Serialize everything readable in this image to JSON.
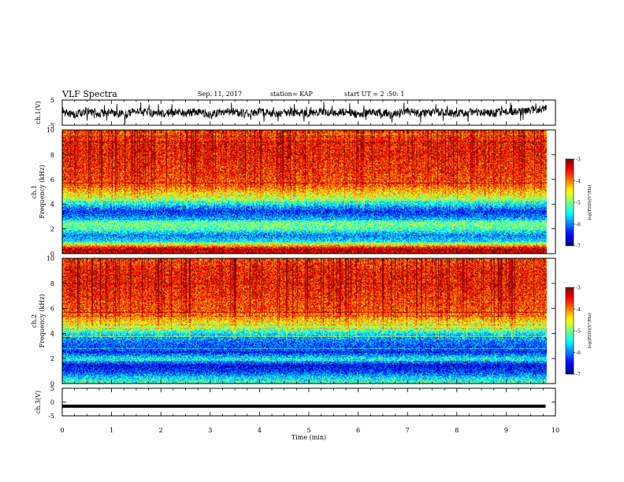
{
  "header": {
    "title": "VLF Spectra",
    "date": "Sep. 11, 2017",
    "station": "station= KAP",
    "start": "start  UT =  2 :50: 1"
  },
  "chart_data": [
    {
      "type": "line",
      "panel": "ch1-waveform",
      "ylabel": "ch.1(V)",
      "ylim": [
        -5,
        5
      ],
      "yticks": [
        "5",
        "-5"
      ],
      "x": [
        0.0,
        0.25,
        0.5,
        0.75,
        1.0,
        1.25,
        1.5,
        1.75,
        2.0,
        2.25,
        2.5,
        2.75,
        3.0,
        3.25,
        3.5,
        3.75,
        4.0,
        4.25,
        4.5,
        4.75,
        5.0,
        5.25,
        5.5,
        5.75,
        6.0,
        6.25,
        6.5,
        6.75,
        7.0,
        7.25,
        7.5,
        7.75,
        8.0,
        8.25,
        8.5,
        8.75,
        9.0,
        9.25,
        9.5,
        9.75
      ],
      "y": [
        0.5,
        -1.0,
        0.8,
        -0.3,
        0.2,
        -0.8,
        0.6,
        0.0,
        -0.5,
        0.4,
        -0.2,
        0.3,
        -1.0,
        0.5,
        0.1,
        -0.4,
        0.6,
        -0.6,
        0.2,
        0.0,
        -0.3,
        0.5,
        -0.2,
        0.4,
        -0.8,
        0.2,
        0.1,
        -0.2,
        0.6,
        -0.4,
        0.0,
        0.3,
        -0.6,
        0.4,
        0.2,
        -0.3,
        0.5,
        0.2,
        0.8,
        1.5
      ]
    },
    {
      "type": "heatmap",
      "panel": "ch1-spectrogram",
      "ylabel": "ch.1\nFrequency (kHz)",
      "ylim": [
        0,
        10
      ],
      "yticks": [
        "0",
        "2",
        "4",
        "6",
        "8",
        "10"
      ],
      "colorbar": {
        "label": "log(PSD)(V²/Hz)",
        "range": [
          -7,
          -3
        ],
        "ticks": [
          "-3",
          "-4",
          "-5",
          "-6",
          "-7"
        ]
      },
      "freq_profile_kHz": [
        0,
        0.5,
        1,
        1.5,
        2,
        2.5,
        3,
        3.5,
        4,
        4.5,
        5,
        5.5,
        6,
        7,
        8,
        9,
        10
      ],
      "freq_profile_logpsd": [
        -3.2,
        -3.4,
        -5.5,
        -6.0,
        -5.2,
        -5.0,
        -6.0,
        -6.4,
        -5.6,
        -4.8,
        -4.4,
        -3.9,
        -3.8,
        -3.7,
        -3.6,
        -3.6,
        -3.8
      ]
    },
    {
      "type": "heatmap",
      "panel": "ch2-spectrogram",
      "ylabel": "ch.2\nFrequency (kHz)",
      "ylim": [
        0,
        10
      ],
      "yticks": [
        "0",
        "2",
        "4",
        "6",
        "8",
        "10"
      ],
      "colorbar": {
        "label": "log(PSD)(V²/Hz)",
        "range": [
          -7,
          -3
        ],
        "ticks": [
          "-3",
          "-4",
          "-5",
          "-6",
          "-7"
        ]
      },
      "freq_profile_kHz": [
        0,
        0.5,
        1,
        1.5,
        2,
        2.5,
        3,
        3.5,
        4,
        4.5,
        5,
        5.5,
        6,
        7,
        8,
        9,
        10
      ],
      "freq_profile_logpsd": [
        -5.2,
        -5.6,
        -6.3,
        -6.6,
        -5.4,
        -6.3,
        -6.2,
        -6.0,
        -5.6,
        -4.9,
        -4.4,
        -4.0,
        -3.8,
        -3.7,
        -3.6,
        -3.6,
        -3.8
      ]
    },
    {
      "type": "line",
      "panel": "ch3-waveform",
      "ylabel": "ch.3(V)",
      "ylim": [
        -5,
        5
      ],
      "yticks": [
        "5",
        "0",
        "-5"
      ],
      "x": [
        0,
        9.8
      ],
      "y": [
        -1.5,
        -1.5
      ]
    }
  ],
  "xaxis": {
    "label": "Time (min)",
    "range": [
      0,
      10
    ],
    "ticks": [
      "0",
      "1",
      "2",
      "3",
      "4",
      "5",
      "6",
      "7",
      "8",
      "9",
      "10"
    ]
  },
  "colors": {
    "axis": "#000000",
    "line": "#000000"
  }
}
